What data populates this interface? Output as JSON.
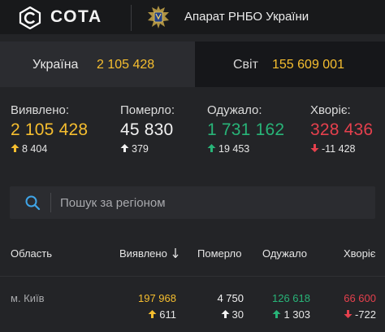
{
  "header": {
    "logo_text": "СОТА",
    "org_name": "Апарат РНБО України"
  },
  "tabs": [
    {
      "label": "Україна",
      "value": "2 105 428",
      "active": true
    },
    {
      "label": "Світ",
      "value": "155 609 001",
      "active": false
    }
  ],
  "stats": [
    {
      "label": "Виявлено:",
      "value": "2 105 428",
      "delta": "8 404",
      "direction": "up",
      "color": "#f6be2f"
    },
    {
      "label": "Померло:",
      "value": "45 830",
      "delta": "379",
      "direction": "up",
      "color": "#f2f2f2"
    },
    {
      "label": "Одужало:",
      "value": "1 731 162",
      "delta": "19 453",
      "direction": "up",
      "color": "#28b478"
    },
    {
      "label": "Хворіє:",
      "value": "328 436",
      "delta": "-11 428",
      "direction": "down",
      "color": "#e5404d"
    }
  ],
  "search": {
    "placeholder": "Пошук за регіоном",
    "value": ""
  },
  "table": {
    "columns": [
      "Область",
      "Виявлено",
      "Померло",
      "Одужало",
      "Хворіє"
    ],
    "sort_icon": "arrow-down-icon",
    "rows": [
      {
        "region": "м. Київ",
        "detected": "197 968",
        "detected_delta": "611",
        "died": "4 750",
        "died_delta": "30",
        "recovered": "126 618",
        "recovered_delta": "1 303",
        "sick": "66 600",
        "sick_delta": "-722"
      }
    ]
  },
  "colors": {
    "accent": "#f6be2f",
    "recovered": "#28b478",
    "sick": "#e5404d",
    "search_icon": "#3fa5e8",
    "background": "#232427"
  },
  "icons": [
    "cota-logo-icon",
    "rnbo-emblem-icon",
    "search-icon",
    "arrow-up-icon",
    "arrow-down-icon"
  ]
}
